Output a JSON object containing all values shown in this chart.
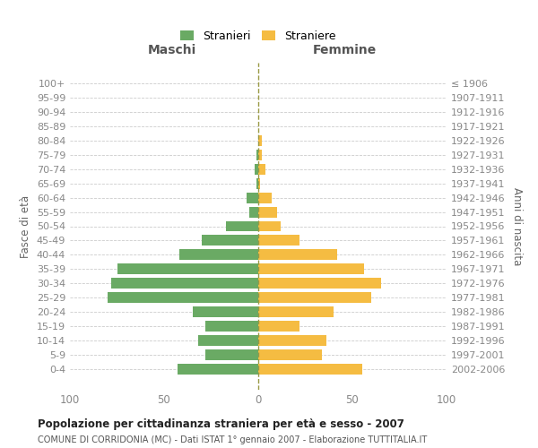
{
  "age_groups": [
    "100+",
    "95-99",
    "90-94",
    "85-89",
    "80-84",
    "75-79",
    "70-74",
    "65-69",
    "60-64",
    "55-59",
    "50-54",
    "45-49",
    "40-44",
    "35-39",
    "30-34",
    "25-29",
    "20-24",
    "15-19",
    "10-14",
    "5-9",
    "0-4"
  ],
  "birth_years": [
    "≤ 1906",
    "1907-1911",
    "1912-1916",
    "1917-1921",
    "1922-1926",
    "1927-1931",
    "1932-1936",
    "1937-1941",
    "1942-1946",
    "1947-1951",
    "1952-1956",
    "1957-1961",
    "1962-1966",
    "1967-1971",
    "1972-1976",
    "1977-1981",
    "1982-1986",
    "1987-1991",
    "1992-1996",
    "1997-2001",
    "2002-2006"
  ],
  "maschi": [
    0,
    0,
    0,
    0,
    0,
    1,
    2,
    1,
    6,
    5,
    17,
    30,
    42,
    75,
    78,
    80,
    35,
    28,
    32,
    28,
    43
  ],
  "femmine": [
    0,
    0,
    0,
    0,
    2,
    2,
    4,
    1,
    7,
    10,
    12,
    22,
    42,
    56,
    65,
    60,
    40,
    22,
    36,
    34,
    55
  ],
  "male_color": "#6aaa64",
  "female_color": "#f5bc42",
  "male_label": "Stranieri",
  "female_label": "Straniere",
  "maschi_header": "Maschi",
  "femmine_header": "Femmine",
  "ylabel_left": "Fasce di età",
  "ylabel_right": "Anni di nascita",
  "xlim": 100,
  "title": "Popolazione per cittadinanza straniera per età e sesso - 2007",
  "subtitle": "COMUNE DI CORRIDONIA (MC) - Dati ISTAT 1° gennaio 2007 - Elaborazione TUTTITALIA.IT",
  "bg_color": "#ffffff",
  "grid_color": "#cccccc",
  "dashed_line_color": "#999944"
}
